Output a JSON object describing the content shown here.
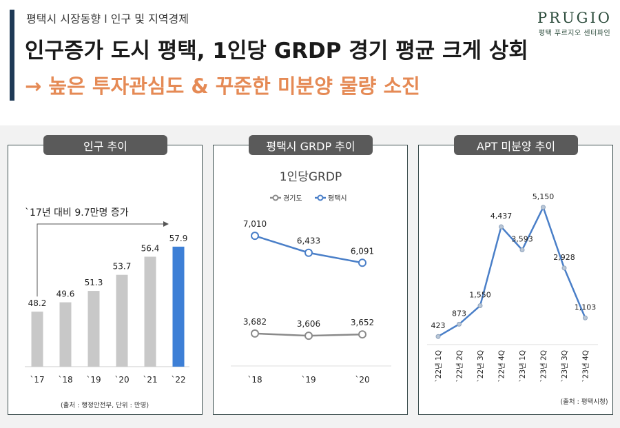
{
  "header": {
    "breadcrumb": "평택시 시장동향 l 인구 및 지역경제",
    "headline": "인구증가 도시 평택, 1인당 GRDP 경기 평균 크게 상회",
    "subline": "→ 높은 투자관심도 & 꾸준한 미분양 물량 소진",
    "logo_word": "PRUGIO",
    "logo_sub": "평택 푸르지오 센터파인"
  },
  "colors": {
    "navy": "#1f3a56",
    "orange": "#e58a55",
    "bar_gray": "#c8c8c8",
    "bar_blue": "#3d7fd6",
    "line_gray": "#8a8a8a",
    "line_blue": "#4a7fc8"
  },
  "chart_data": [
    {
      "type": "bar",
      "panel_title": "인구 추이",
      "categories": [
        "`17",
        "`18",
        "`19",
        "`20",
        "`21",
        "`22"
      ],
      "values": [
        48.2,
        49.6,
        51.3,
        53.7,
        56.4,
        57.9
      ],
      "value_labels": [
        "48.2",
        "49.6",
        "51.3",
        "53.7",
        "56.4",
        "57.9"
      ],
      "highlight_index": 5,
      "ylim": [
        40,
        62
      ],
      "annotation": "`17년 대비 9.7만명 증가",
      "source": "(출처 : 행정안전부, 단위 : 만명)"
    },
    {
      "type": "line",
      "panel_title": "평택시 GRDP 추이",
      "title": "1인당GRDP",
      "categories": [
        "`18",
        "`19",
        "`20"
      ],
      "series": [
        {
          "name": "경기도",
          "values": [
            3682,
            3606,
            3652
          ],
          "labels": [
            "3,682",
            "3,606",
            "3,652"
          ]
        },
        {
          "name": "평택시",
          "values": [
            7010,
            6433,
            6091
          ],
          "labels": [
            "7,010",
            "6,433",
            "6,091"
          ]
        }
      ],
      "ylim": [
        2600,
        8000
      ]
    },
    {
      "type": "line",
      "panel_title": "APT 미분양 추이",
      "categories": [
        "`22년 1Q",
        "`22년 2Q",
        "`22년 3Q",
        "`22년 4Q",
        "`23년 1Q",
        "`23년 2Q",
        "`23년 3Q",
        "`23년 4Q"
      ],
      "values": [
        423,
        873,
        1550,
        4437,
        3593,
        5150,
        2928,
        1103
      ],
      "value_labels": [
        "423",
        "873",
        "1,550",
        "4,437",
        "3,593",
        "5,150",
        "2,928",
        "1,103"
      ],
      "ylim": [
        0,
        5800
      ],
      "source": "(출처 : 평택시청)"
    }
  ]
}
